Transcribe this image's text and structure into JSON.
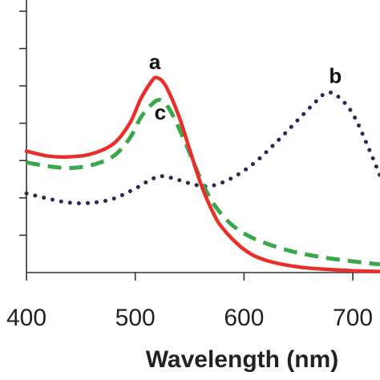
{
  "chart_data": {
    "type": "line",
    "xlabel": "Wavelength (nm)",
    "ylabel": "",
    "xlim": [
      400,
      725
    ],
    "ylim": [
      0,
      7.3
    ],
    "x_ticks": [
      400,
      500,
      600,
      700
    ],
    "x_tick_labels": [
      "400",
      "500",
      "600",
      "700"
    ],
    "y_ticks": [
      1,
      2,
      3,
      4,
      5,
      6,
      7
    ],
    "grid": false,
    "series": [
      {
        "name": "a",
        "color": "#e8302a",
        "style": "solid",
        "points": [
          [
            400,
            3.25
          ],
          [
            420,
            3.12
          ],
          [
            440,
            3.1
          ],
          [
            460,
            3.18
          ],
          [
            480,
            3.45
          ],
          [
            495,
            4.0
          ],
          [
            505,
            4.65
          ],
          [
            515,
            5.12
          ],
          [
            520,
            5.22
          ],
          [
            528,
            5.0
          ],
          [
            540,
            4.2
          ],
          [
            550,
            3.3
          ],
          [
            560,
            2.4
          ],
          [
            570,
            1.7
          ],
          [
            580,
            1.2
          ],
          [
            600,
            0.62
          ],
          [
            620,
            0.33
          ],
          [
            650,
            0.15
          ],
          [
            680,
            0.08
          ],
          [
            700,
            0.05
          ],
          [
            725,
            0.03
          ]
        ]
      },
      {
        "name": "c",
        "color": "#3aa84a",
        "style": "dashed",
        "points": [
          [
            400,
            2.95
          ],
          [
            420,
            2.85
          ],
          [
            440,
            2.8
          ],
          [
            460,
            2.88
          ],
          [
            480,
            3.12
          ],
          [
            495,
            3.6
          ],
          [
            505,
            4.15
          ],
          [
            515,
            4.5
          ],
          [
            523,
            4.62
          ],
          [
            532,
            4.35
          ],
          [
            545,
            3.55
          ],
          [
            555,
            2.85
          ],
          [
            565,
            2.2
          ],
          [
            575,
            1.72
          ],
          [
            590,
            1.25
          ],
          [
            610,
            0.9
          ],
          [
            640,
            0.6
          ],
          [
            670,
            0.42
          ],
          [
            700,
            0.3
          ],
          [
            725,
            0.22
          ]
        ]
      },
      {
        "name": "b",
        "color": "#2a2a55",
        "style": "dotted",
        "points": [
          [
            400,
            2.12
          ],
          [
            420,
            1.98
          ],
          [
            440,
            1.87
          ],
          [
            460,
            1.87
          ],
          [
            480,
            1.98
          ],
          [
            500,
            2.25
          ],
          [
            515,
            2.5
          ],
          [
            525,
            2.58
          ],
          [
            540,
            2.48
          ],
          [
            555,
            2.35
          ],
          [
            570,
            2.32
          ],
          [
            590,
            2.55
          ],
          [
            610,
            2.95
          ],
          [
            630,
            3.5
          ],
          [
            650,
            4.1
          ],
          [
            665,
            4.55
          ],
          [
            675,
            4.8
          ],
          [
            685,
            4.75
          ],
          [
            700,
            4.25
          ],
          [
            715,
            3.3
          ],
          [
            725,
            2.6
          ]
        ]
      }
    ],
    "annotations": [
      {
        "text": "a",
        "x": 518,
        "y": 5.45
      },
      {
        "text": "c",
        "x": 523,
        "y": 4.1
      },
      {
        "text": "b",
        "x": 684,
        "y": 5.08
      }
    ]
  }
}
